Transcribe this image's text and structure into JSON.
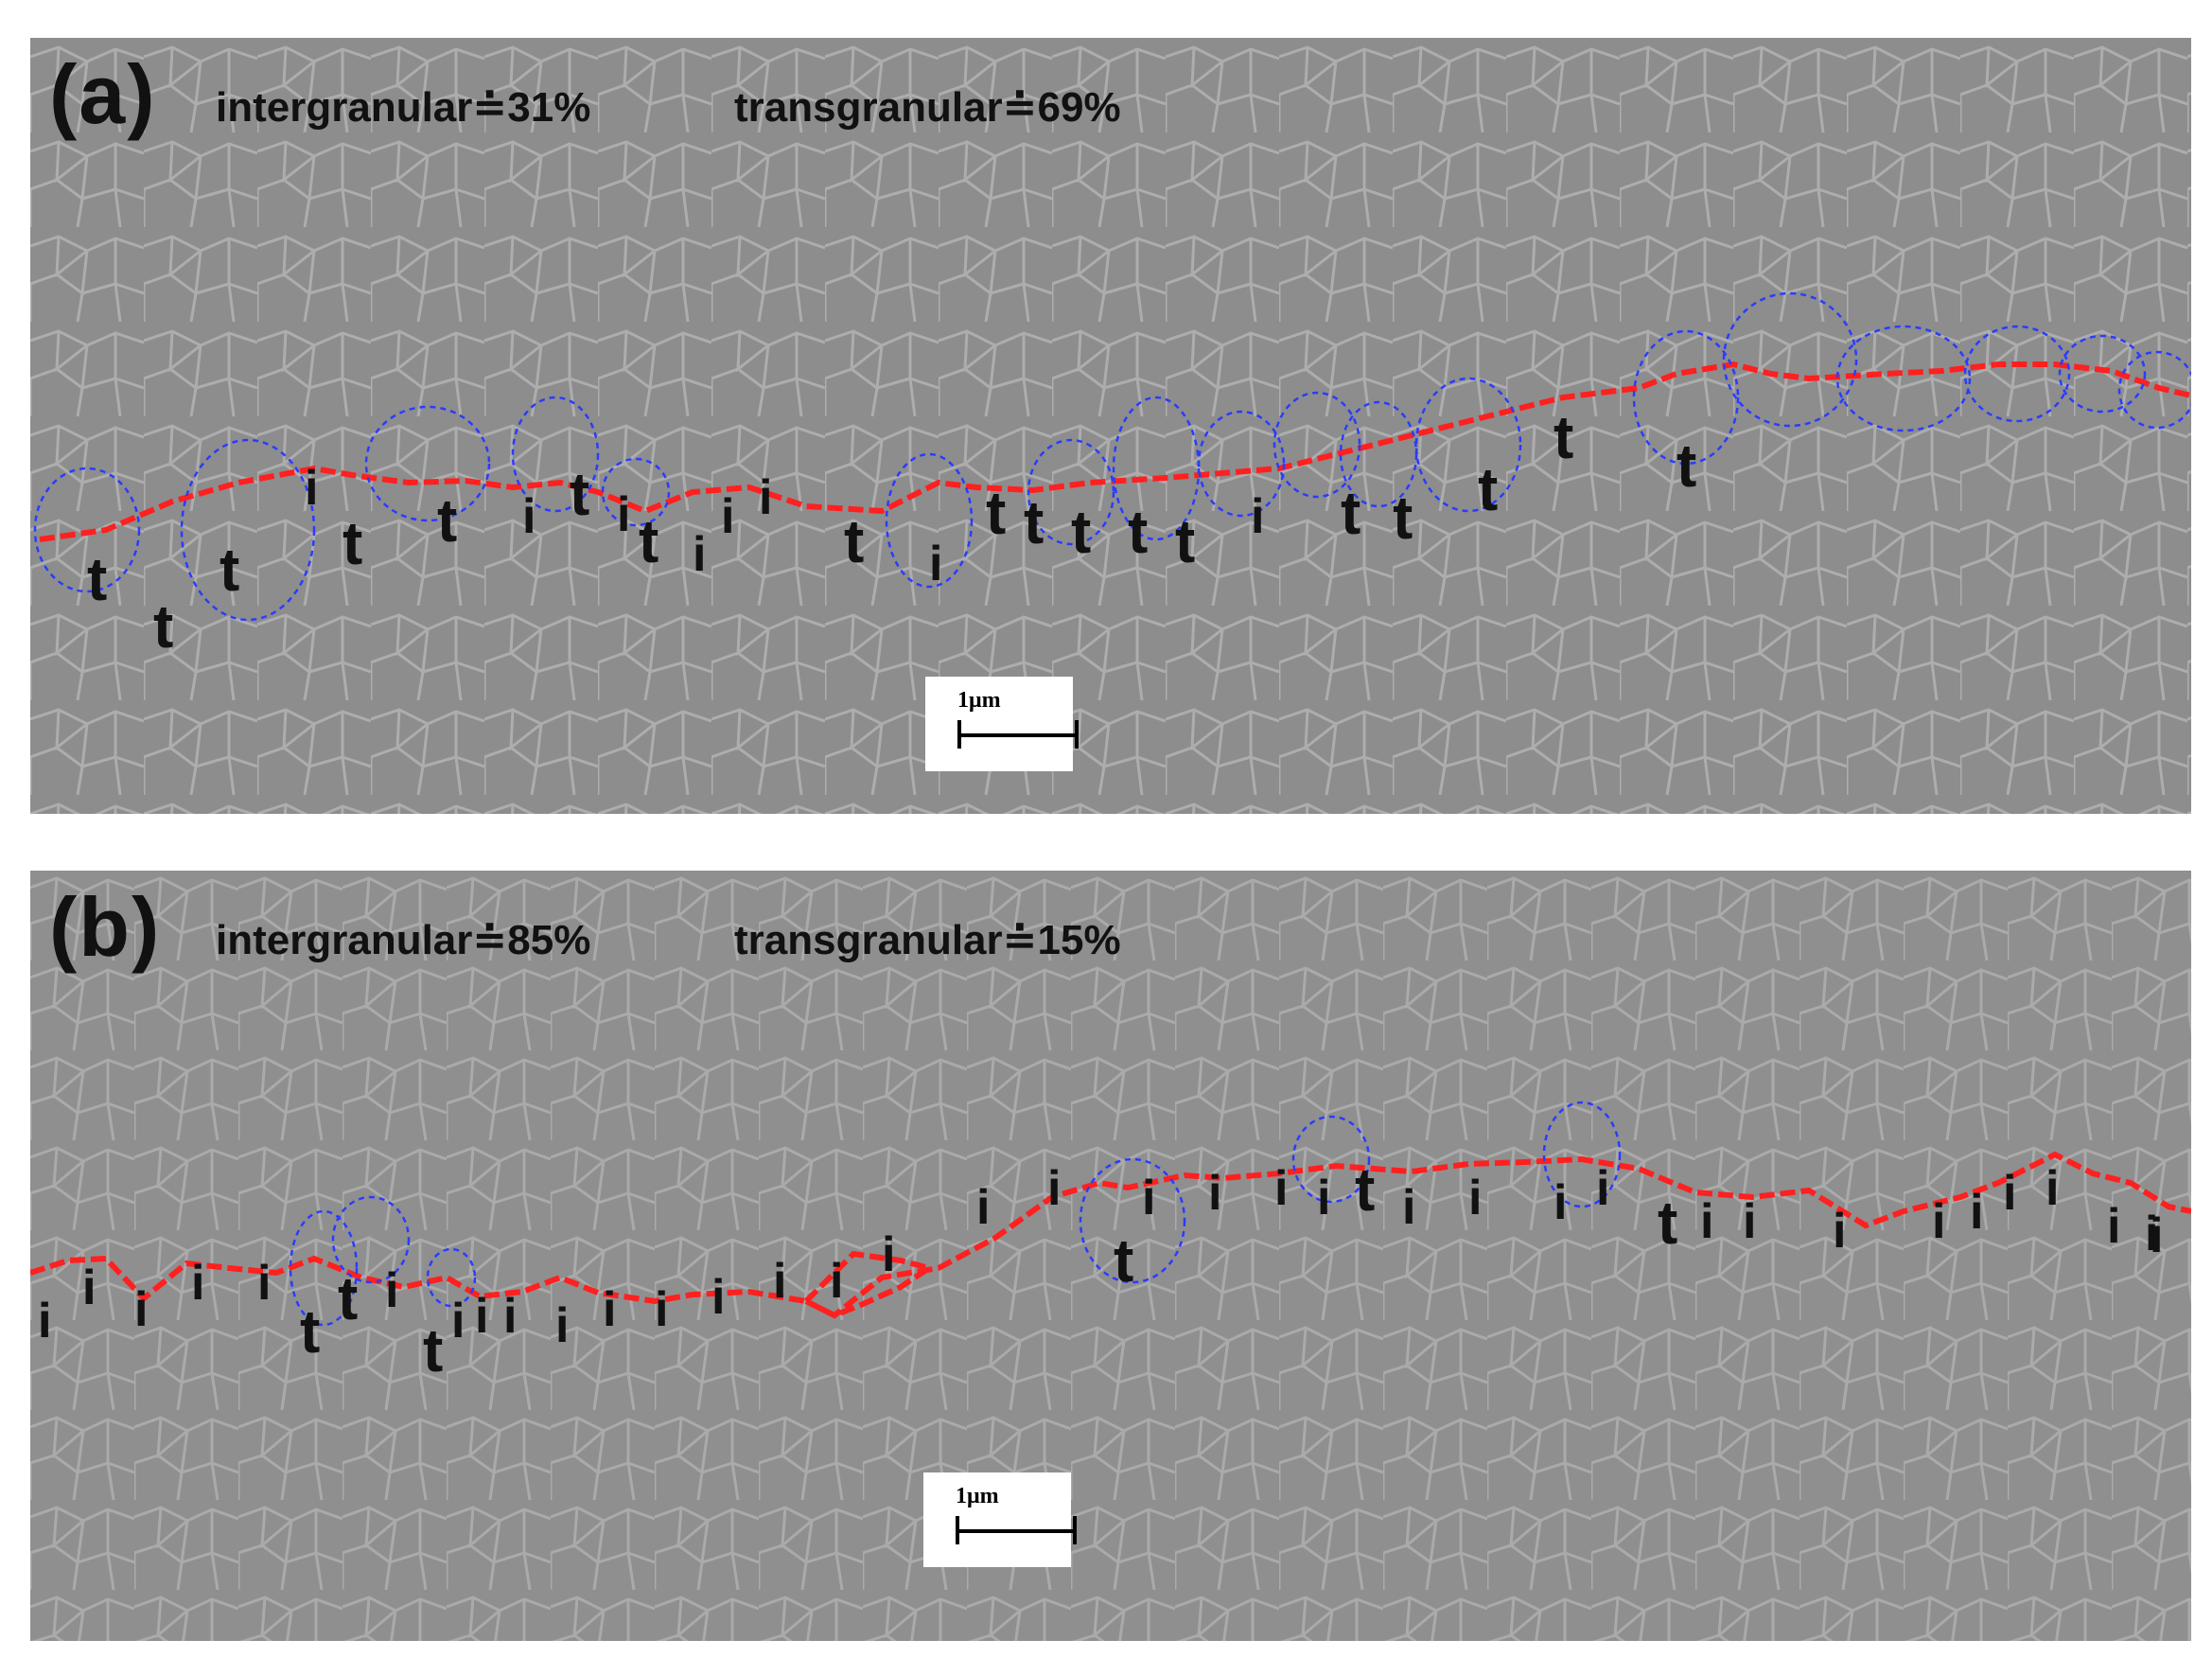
{
  "panels": [
    {
      "letter": "(a)",
      "intergranular": "intergranular≐31%",
      "transgranular": "transgranular≐69%",
      "scale_label": "1μm",
      "crack_labels": "t t t i t t i t i t i i i t i t t t t t i t t t t t"
    },
    {
      "letter": "(b)",
      "intergranular": "intergranular≐85%",
      "transgranular": "transgranular≐15%",
      "scale_label": "1μm",
      "crack_labels": "i i i i i t t i t i i i i i i i i i i i i t i i i i t i i i i t i i i i i i i i i i i i"
    }
  ],
  "colors": {
    "crack_path": "#ff2020",
    "grain_outline": "#2a3cff",
    "labels": "#111111",
    "background": "#8f8f8f"
  }
}
